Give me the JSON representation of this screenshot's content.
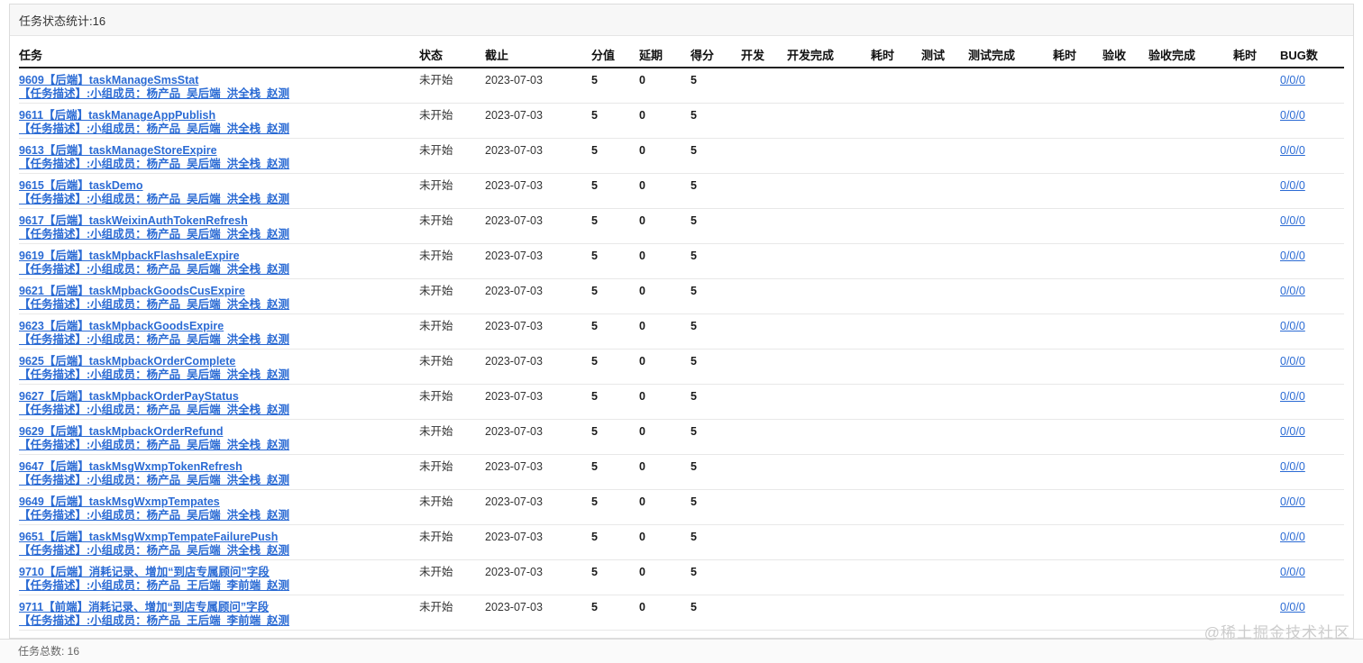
{
  "colors": {
    "link_blue": "#2b6bd4",
    "header_bar_bg": "#f7f7f7",
    "header_underline": "#222222",
    "footer_bg": "#fafafa"
  },
  "panel": {
    "title": "任务状态统计:16",
    "footer_total": "任务总数: 16"
  },
  "watermark": "@稀土掘金技术社区",
  "table": {
    "columns": [
      {
        "key": "title",
        "label": "任务"
      },
      {
        "key": "status",
        "label": "状态"
      },
      {
        "key": "deadline",
        "label": "截止"
      },
      {
        "key": "score",
        "label": "分值"
      },
      {
        "key": "delay",
        "label": "延期"
      },
      {
        "key": "points",
        "label": "得分"
      },
      {
        "key": "dev",
        "label": "开发"
      },
      {
        "key": "dev_done",
        "label": "开发完成"
      },
      {
        "key": "dev_hours",
        "label": "耗时"
      },
      {
        "key": "test",
        "label": "测试"
      },
      {
        "key": "test_done",
        "label": "测试完成"
      },
      {
        "key": "test_hours",
        "label": "耗时"
      },
      {
        "key": "accept",
        "label": "验收"
      },
      {
        "key": "accept_done",
        "label": "验收完成"
      },
      {
        "key": "accept_hours",
        "label": "耗时"
      },
      {
        "key": "bugs",
        "label": "BUG数"
      }
    ],
    "rows": [
      {
        "title": "9609【后端】taskManageSmsStat",
        "desc": "【任务描述】:小组成员：杨产品_吴后端_洪全栈_赵测",
        "status": "未开始",
        "deadline": "2023-07-03",
        "score": "5",
        "delay": "0",
        "points": "5",
        "dev": "",
        "dev_done": "",
        "dev_hours": "",
        "test": "",
        "test_done": "",
        "test_hours": "",
        "accept": "",
        "accept_done": "",
        "accept_hours": "",
        "bugs": "0/0/0"
      },
      {
        "title": "9611【后端】taskManageAppPublish",
        "desc": "【任务描述】:小组成员：杨产品_吴后端_洪全栈_赵测",
        "status": "未开始",
        "deadline": "2023-07-03",
        "score": "5",
        "delay": "0",
        "points": "5",
        "dev": "",
        "dev_done": "",
        "dev_hours": "",
        "test": "",
        "test_done": "",
        "test_hours": "",
        "accept": "",
        "accept_done": "",
        "accept_hours": "",
        "bugs": "0/0/0"
      },
      {
        "title": "9613【后端】taskManageStoreExpire",
        "desc": "【任务描述】:小组成员：杨产品_吴后端_洪全栈_赵测",
        "status": "未开始",
        "deadline": "2023-07-03",
        "score": "5",
        "delay": "0",
        "points": "5",
        "dev": "",
        "dev_done": "",
        "dev_hours": "",
        "test": "",
        "test_done": "",
        "test_hours": "",
        "accept": "",
        "accept_done": "",
        "accept_hours": "",
        "bugs": "0/0/0"
      },
      {
        "title": "9615【后端】taskDemo",
        "desc": "【任务描述】:小组成员：杨产品_吴后端_洪全栈_赵测",
        "status": "未开始",
        "deadline": "2023-07-03",
        "score": "5",
        "delay": "0",
        "points": "5",
        "dev": "",
        "dev_done": "",
        "dev_hours": "",
        "test": "",
        "test_done": "",
        "test_hours": "",
        "accept": "",
        "accept_done": "",
        "accept_hours": "",
        "bugs": "0/0/0"
      },
      {
        "title": "9617【后端】taskWeixinAuthTokenRefresh",
        "desc": "【任务描述】:小组成员：杨产品_吴后端_洪全栈_赵测",
        "status": "未开始",
        "deadline": "2023-07-03",
        "score": "5",
        "delay": "0",
        "points": "5",
        "dev": "",
        "dev_done": "",
        "dev_hours": "",
        "test": "",
        "test_done": "",
        "test_hours": "",
        "accept": "",
        "accept_done": "",
        "accept_hours": "",
        "bugs": "0/0/0"
      },
      {
        "title": "9619【后端】taskMpbackFlashsaleExpire",
        "desc": "【任务描述】:小组成员：杨产品_吴后端_洪全栈_赵测",
        "status": "未开始",
        "deadline": "2023-07-03",
        "score": "5",
        "delay": "0",
        "points": "5",
        "dev": "",
        "dev_done": "",
        "dev_hours": "",
        "test": "",
        "test_done": "",
        "test_hours": "",
        "accept": "",
        "accept_done": "",
        "accept_hours": "",
        "bugs": "0/0/0"
      },
      {
        "title": "9621【后端】taskMpbackGoodsCusExpire",
        "desc": "【任务描述】:小组成员：杨产品_吴后端_洪全栈_赵测",
        "status": "未开始",
        "deadline": "2023-07-03",
        "score": "5",
        "delay": "0",
        "points": "5",
        "dev": "",
        "dev_done": "",
        "dev_hours": "",
        "test": "",
        "test_done": "",
        "test_hours": "",
        "accept": "",
        "accept_done": "",
        "accept_hours": "",
        "bugs": "0/0/0"
      },
      {
        "title": "9623【后端】taskMpbackGoodsExpire",
        "desc": "【任务描述】:小组成员：杨产品_吴后端_洪全栈_赵测",
        "status": "未开始",
        "deadline": "2023-07-03",
        "score": "5",
        "delay": "0",
        "points": "5",
        "dev": "",
        "dev_done": "",
        "dev_hours": "",
        "test": "",
        "test_done": "",
        "test_hours": "",
        "accept": "",
        "accept_done": "",
        "accept_hours": "",
        "bugs": "0/0/0"
      },
      {
        "title": "9625【后端】taskMpbackOrderComplete",
        "desc": "【任务描述】:小组成员：杨产品_吴后端_洪全栈_赵测",
        "status": "未开始",
        "deadline": "2023-07-03",
        "score": "5",
        "delay": "0",
        "points": "5",
        "dev": "",
        "dev_done": "",
        "dev_hours": "",
        "test": "",
        "test_done": "",
        "test_hours": "",
        "accept": "",
        "accept_done": "",
        "accept_hours": "",
        "bugs": "0/0/0"
      },
      {
        "title": "9627【后端】taskMpbackOrderPayStatus",
        "desc": "【任务描述】:小组成员：杨产品_吴后端_洪全栈_赵测",
        "status": "未开始",
        "deadline": "2023-07-03",
        "score": "5",
        "delay": "0",
        "points": "5",
        "dev": "",
        "dev_done": "",
        "dev_hours": "",
        "test": "",
        "test_done": "",
        "test_hours": "",
        "accept": "",
        "accept_done": "",
        "accept_hours": "",
        "bugs": "0/0/0"
      },
      {
        "title": "9629【后端】taskMpbackOrderRefund",
        "desc": "【任务描述】:小组成员：杨产品_吴后端_洪全栈_赵测",
        "status": "未开始",
        "deadline": "2023-07-03",
        "score": "5",
        "delay": "0",
        "points": "5",
        "dev": "",
        "dev_done": "",
        "dev_hours": "",
        "test": "",
        "test_done": "",
        "test_hours": "",
        "accept": "",
        "accept_done": "",
        "accept_hours": "",
        "bugs": "0/0/0"
      },
      {
        "title": "9647【后端】taskMsgWxmpTokenRefresh",
        "desc": "【任务描述】:小组成员：杨产品_吴后端_洪全栈_赵测",
        "status": "未开始",
        "deadline": "2023-07-03",
        "score": "5",
        "delay": "0",
        "points": "5",
        "dev": "",
        "dev_done": "",
        "dev_hours": "",
        "test": "",
        "test_done": "",
        "test_hours": "",
        "accept": "",
        "accept_done": "",
        "accept_hours": "",
        "bugs": "0/0/0"
      },
      {
        "title": "9649【后端】taskMsgWxmpTempates",
        "desc": "【任务描述】:小组成员：杨产品_吴后端_洪全栈_赵测",
        "status": "未开始",
        "deadline": "2023-07-03",
        "score": "5",
        "delay": "0",
        "points": "5",
        "dev": "",
        "dev_done": "",
        "dev_hours": "",
        "test": "",
        "test_done": "",
        "test_hours": "",
        "accept": "",
        "accept_done": "",
        "accept_hours": "",
        "bugs": "0/0/0"
      },
      {
        "title": "9651【后端】taskMsgWxmpTempateFailurePush",
        "desc": "【任务描述】:小组成员：杨产品_吴后端_洪全栈_赵测",
        "status": "未开始",
        "deadline": "2023-07-03",
        "score": "5",
        "delay": "0",
        "points": "5",
        "dev": "",
        "dev_done": "",
        "dev_hours": "",
        "test": "",
        "test_done": "",
        "test_hours": "",
        "accept": "",
        "accept_done": "",
        "accept_hours": "",
        "bugs": "0/0/0"
      },
      {
        "title": "9710【后端】消耗记录、增加“到店专属顾问”字段",
        "desc": "【任务描述】:小组成员：杨产品_王后端_李前端_赵测",
        "status": "未开始",
        "deadline": "2023-07-03",
        "score": "5",
        "delay": "0",
        "points": "5",
        "dev": "",
        "dev_done": "",
        "dev_hours": "",
        "test": "",
        "test_done": "",
        "test_hours": "",
        "accept": "",
        "accept_done": "",
        "accept_hours": "",
        "bugs": "0/0/0"
      },
      {
        "title": "9711【前端】消耗记录、增加“到店专属顾问”字段",
        "desc": "【任务描述】:小组成员：杨产品_王后端_李前端_赵测",
        "status": "未开始",
        "deadline": "2023-07-03",
        "score": "5",
        "delay": "0",
        "points": "5",
        "dev": "",
        "dev_done": "",
        "dev_hours": "",
        "test": "",
        "test_done": "",
        "test_hours": "",
        "accept": "",
        "accept_done": "",
        "accept_hours": "",
        "bugs": "0/0/0"
      }
    ]
  }
}
